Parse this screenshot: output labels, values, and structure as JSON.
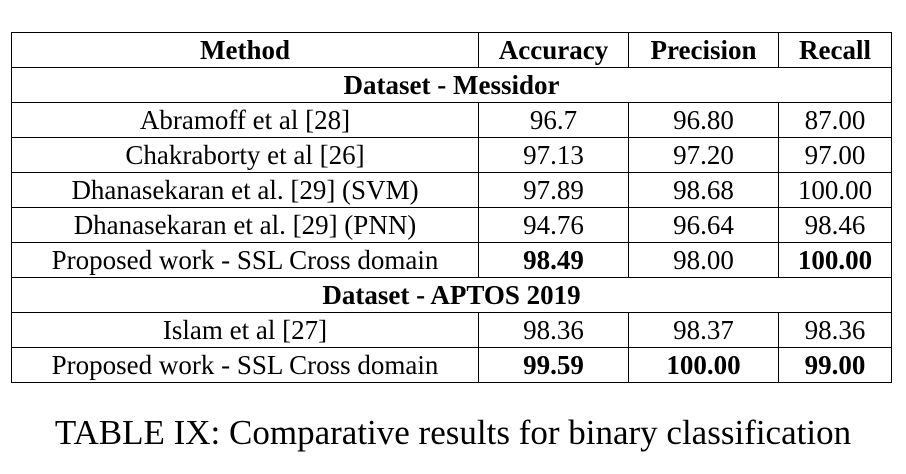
{
  "table": {
    "headers": [
      "Method",
      "Accuracy",
      "Precision",
      "Recall"
    ],
    "sections": [
      {
        "title": "Dataset - Messidor",
        "rows": [
          {
            "method": "Abramoff et al [28]",
            "accuracy": "96.7",
            "precision": "96.80",
            "recall": "87.00",
            "bold": []
          },
          {
            "method": "Chakraborty et al [26]",
            "accuracy": "97.13",
            "precision": "97.20",
            "recall": "97.00",
            "bold": []
          },
          {
            "method": "Dhanasekaran et al. [29] (SVM)",
            "accuracy": "97.89",
            "precision": "98.68",
            "recall": "100.00",
            "bold": []
          },
          {
            "method": "Dhanasekaran et al. [29] (PNN)",
            "accuracy": "94.76",
            "precision": "96.64",
            "recall": "98.46",
            "bold": []
          },
          {
            "method": "Proposed work - SSL Cross domain",
            "accuracy": "98.49",
            "precision": "98.00",
            "recall": "100.00",
            "bold": [
              "accuracy",
              "recall"
            ]
          }
        ]
      },
      {
        "title": "Dataset - APTOS 2019",
        "rows": [
          {
            "method": "Islam et al [27]",
            "accuracy": "98.36",
            "precision": "98.37",
            "recall": "98.36",
            "bold": []
          },
          {
            "method": "Proposed work - SSL Cross domain",
            "accuracy": "99.59",
            "precision": "100.00",
            "recall": "99.00",
            "bold": [
              "accuracy",
              "precision",
              "recall"
            ]
          }
        ]
      }
    ]
  },
  "caption": "TABLE IX: Comparative results for binary classification"
}
